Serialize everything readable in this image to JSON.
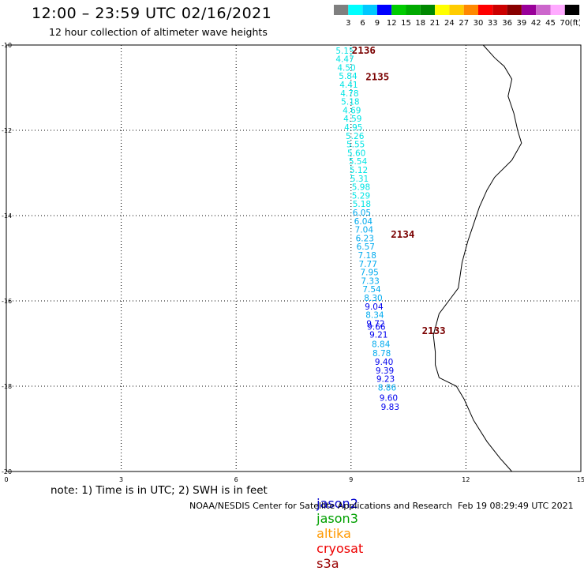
{
  "header": {
    "title": "12:00 – 23:59 UTC 02/16/2021",
    "subtitle": "12 hour collection of altimeter wave heights"
  },
  "colorbar": {
    "colors": [
      "#7f7f7f",
      "#00ffff",
      "#00c8ff",
      "#0000ff",
      "#00cc00",
      "#00aa00",
      "#008800",
      "#ffff00",
      "#ffcc00",
      "#ff8800",
      "#ff0000",
      "#cc0000",
      "#880000",
      "#990099",
      "#cc66cc",
      "#ffaaff",
      "#000000"
    ],
    "labels": [
      "3",
      "6",
      "9",
      "12",
      "15",
      "18",
      "21",
      "24",
      "27",
      "30",
      "33",
      "36",
      "39",
      "42",
      "45",
      "70"
    ],
    "unit": "(ft)"
  },
  "axes": {
    "x_ticks": [
      "0",
      "3",
      "6",
      "9",
      "12",
      "15"
    ],
    "y_ticks": [
      "-10",
      "-12",
      "-14",
      "-16",
      "-18",
      "-20"
    ]
  },
  "wave_heights": [
    {
      "lon": 8.6,
      "lat": -10.2,
      "v": "5.15"
    },
    {
      "lon": 8.6,
      "lat": -10.4,
      "v": "4.47"
    },
    {
      "lon": 8.64,
      "lat": -10.6,
      "v": "4.50"
    },
    {
      "lon": 8.68,
      "lat": -10.8,
      "v": "5.84"
    },
    {
      "lon": 8.7,
      "lat": -11.0,
      "v": "4.41"
    },
    {
      "lon": 8.72,
      "lat": -11.2,
      "v": "4.78"
    },
    {
      "lon": 8.74,
      "lat": -11.4,
      "v": "5.18"
    },
    {
      "lon": 8.78,
      "lat": -11.6,
      "v": "4.69"
    },
    {
      "lon": 8.8,
      "lat": -11.8,
      "v": "4.59"
    },
    {
      "lon": 8.82,
      "lat": -12.0,
      "v": "4.95"
    },
    {
      "lon": 8.86,
      "lat": -12.2,
      "v": "5.26"
    },
    {
      "lon": 8.88,
      "lat": -12.4,
      "v": "5.55"
    },
    {
      "lon": 8.9,
      "lat": -12.6,
      "v": "5.60"
    },
    {
      "lon": 8.94,
      "lat": -12.8,
      "v": "5.54"
    },
    {
      "lon": 8.96,
      "lat": -13.0,
      "v": "5.12"
    },
    {
      "lon": 8.98,
      "lat": -13.2,
      "v": "5.31"
    },
    {
      "lon": 9.02,
      "lat": -13.4,
      "v": "5.98"
    },
    {
      "lon": 9.02,
      "lat": -13.6,
      "v": "5.29"
    },
    {
      "lon": 9.04,
      "lat": -13.8,
      "v": "5.18"
    },
    {
      "lon": 9.04,
      "lat": -14.0,
      "v": "6.05"
    },
    {
      "lon": 9.08,
      "lat": -14.2,
      "v": "6.04"
    },
    {
      "lon": 9.1,
      "lat": -14.4,
      "v": "7.04"
    },
    {
      "lon": 9.12,
      "lat": -14.6,
      "v": "6.23"
    },
    {
      "lon": 9.14,
      "lat": -14.8,
      "v": "6.57"
    },
    {
      "lon": 9.18,
      "lat": -15.0,
      "v": "7.18"
    },
    {
      "lon": 9.2,
      "lat": -15.2,
      "v": "7.77"
    },
    {
      "lon": 9.24,
      "lat": -15.4,
      "v": "7.95"
    },
    {
      "lon": 9.26,
      "lat": -15.6,
      "v": "7.33"
    },
    {
      "lon": 9.3,
      "lat": -15.8,
      "v": "7.54"
    },
    {
      "lon": 9.34,
      "lat": -16.0,
      "v": "8.30"
    },
    {
      "lon": 9.36,
      "lat": -16.2,
      "v": "9.04"
    },
    {
      "lon": 9.38,
      "lat": -16.4,
      "v": "8.34"
    },
    {
      "lon": 9.4,
      "lat": -16.6,
      "v": "9.72"
    },
    {
      "lon": 9.42,
      "lat": -16.68,
      "v": "9.66"
    },
    {
      "lon": 9.48,
      "lat": -16.86,
      "v": "9.21"
    },
    {
      "lon": 9.54,
      "lat": -17.08,
      "v": "8.84"
    },
    {
      "lon": 9.56,
      "lat": -17.3,
      "v": "8.78"
    },
    {
      "lon": 9.62,
      "lat": -17.5,
      "v": "9.40"
    },
    {
      "lon": 9.64,
      "lat": -17.7,
      "v": "9.39"
    },
    {
      "lon": 9.66,
      "lat": -17.9,
      "v": "9.23"
    },
    {
      "lon": 9.7,
      "lat": -18.1,
      "v": "8.86"
    },
    {
      "lon": 9.74,
      "lat": -18.34,
      "v": "9.60"
    },
    {
      "lon": 9.78,
      "lat": -18.56,
      "v": "9.83"
    }
  ],
  "times": [
    {
      "lon": 9.02,
      "lat": -10.2,
      "t": "2136"
    },
    {
      "lon": 9.38,
      "lat": -10.82,
      "t": "2135"
    },
    {
      "lon": 10.04,
      "lat": -14.52,
      "t": "2134"
    },
    {
      "lon": 10.85,
      "lat": -16.78,
      "t": "2133"
    }
  ],
  "footer": {
    "note": "note: 1) Time is in UTC; 2) SWH is in feet",
    "satellites": [
      {
        "name": "jason2",
        "color": "#0000cc"
      },
      {
        "name": "jason3",
        "color": "#00a000"
      },
      {
        "name": "altika",
        "color": "#ff9900"
      },
      {
        "name": "cryosat",
        "color": "#ee0000"
      },
      {
        "name": "s3a",
        "color": "#990000"
      }
    ],
    "credit": "NOAA/NESDIS Center for Satellite Applications and Research",
    "timestamp": "Feb 19 08:29:49 UTC 2021"
  }
}
